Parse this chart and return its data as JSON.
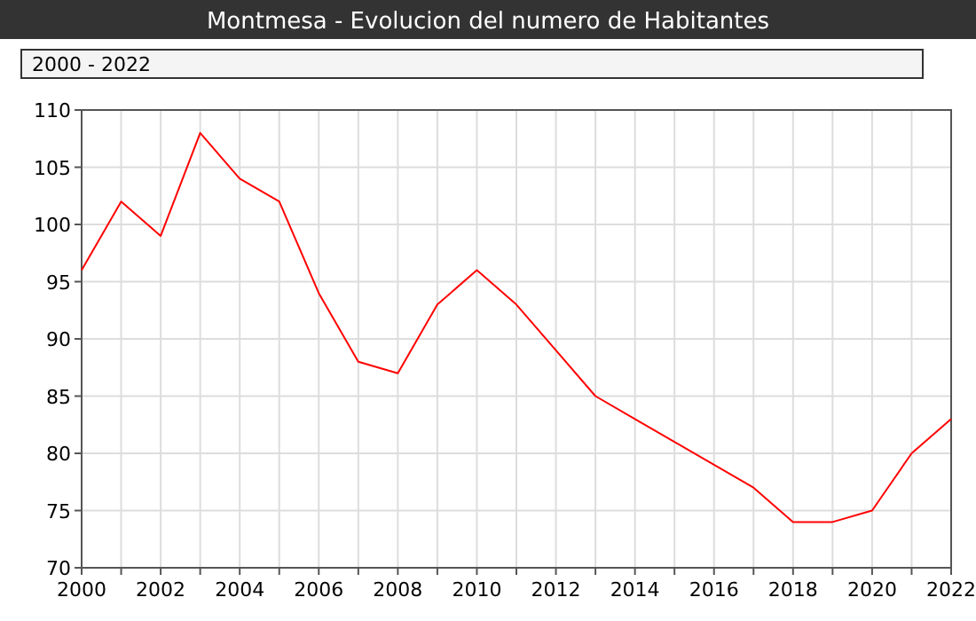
{
  "chart_data": {
    "type": "line",
    "title": "Montmesa - Evolucion del numero de Habitantes",
    "subtitle": "2000 - 2022",
    "x": [
      2000,
      2001,
      2002,
      2003,
      2004,
      2005,
      2006,
      2007,
      2008,
      2009,
      2010,
      2011,
      2012,
      2013,
      2014,
      2015,
      2016,
      2017,
      2018,
      2019,
      2020,
      2021,
      2022
    ],
    "series": [
      {
        "color": "#ff0000",
        "values": [
          96,
          102,
          99,
          108,
          104,
          102,
          94,
          88,
          87,
          93,
          96,
          93,
          89,
          85,
          83,
          81,
          79,
          77,
          74,
          74,
          75,
          80,
          83
        ]
      }
    ],
    "xlim": [
      2000,
      2022
    ],
    "xticks": [
      2000,
      {
        "value": 2001,
        "label": null
      },
      2002,
      {
        "value": 2003,
        "label": null
      },
      2004,
      {
        "value": 2005,
        "label": null
      },
      2006,
      {
        "value": 2007,
        "label": null
      },
      2008,
      {
        "value": 2009,
        "label": null
      },
      2010,
      {
        "value": 2011,
        "label": null
      },
      2012,
      {
        "value": 2013,
        "label": null
      },
      2014,
      {
        "value": 2015,
        "label": null
      },
      2016,
      {
        "value": 2017,
        "label": null
      },
      2018,
      {
        "value": 2019,
        "label": null
      },
      2020,
      {
        "value": 2021,
        "label": null
      },
      2022
    ],
    "ylim": [
      70,
      110
    ],
    "yticks": [
      70,
      75,
      80,
      85,
      90,
      95,
      100,
      105,
      110
    ],
    "grid": true,
    "marker": "none",
    "line_style": "solid"
  }
}
